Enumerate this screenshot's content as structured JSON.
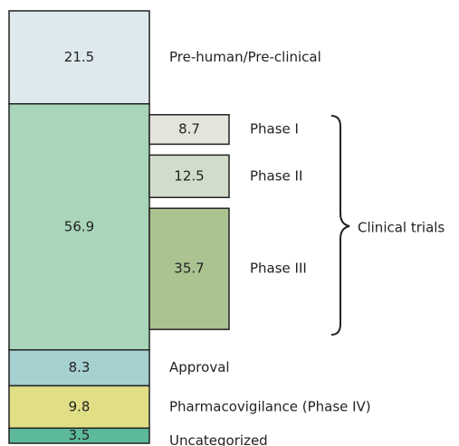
{
  "chart_data": {
    "type": "stacked-breakdown",
    "series": [
      {
        "name": "Pre-human/Pre-clinical",
        "value": 21.5,
        "color": "#dde9ec"
      },
      {
        "name": "Clinical trials",
        "value": 56.9,
        "color": "#a9d6ba"
      },
      {
        "name": "Approval",
        "value": 8.3,
        "color": "#a7d0d1"
      },
      {
        "name": "Pharmacovigilance (Phase IV)",
        "value": 9.8,
        "color": "#e1df86"
      },
      {
        "name": "Uncategorized",
        "value": 3.5,
        "color": "#5cba9b"
      }
    ],
    "subseries": [
      {
        "name": "Phase I",
        "value": 8.7,
        "color": "#e4e4dd"
      },
      {
        "name": "Phase II",
        "value": 12.5,
        "color": "#d1ddca"
      },
      {
        "name": "Phase III",
        "value": 35.7,
        "color": "#aac390"
      }
    ]
  }
}
